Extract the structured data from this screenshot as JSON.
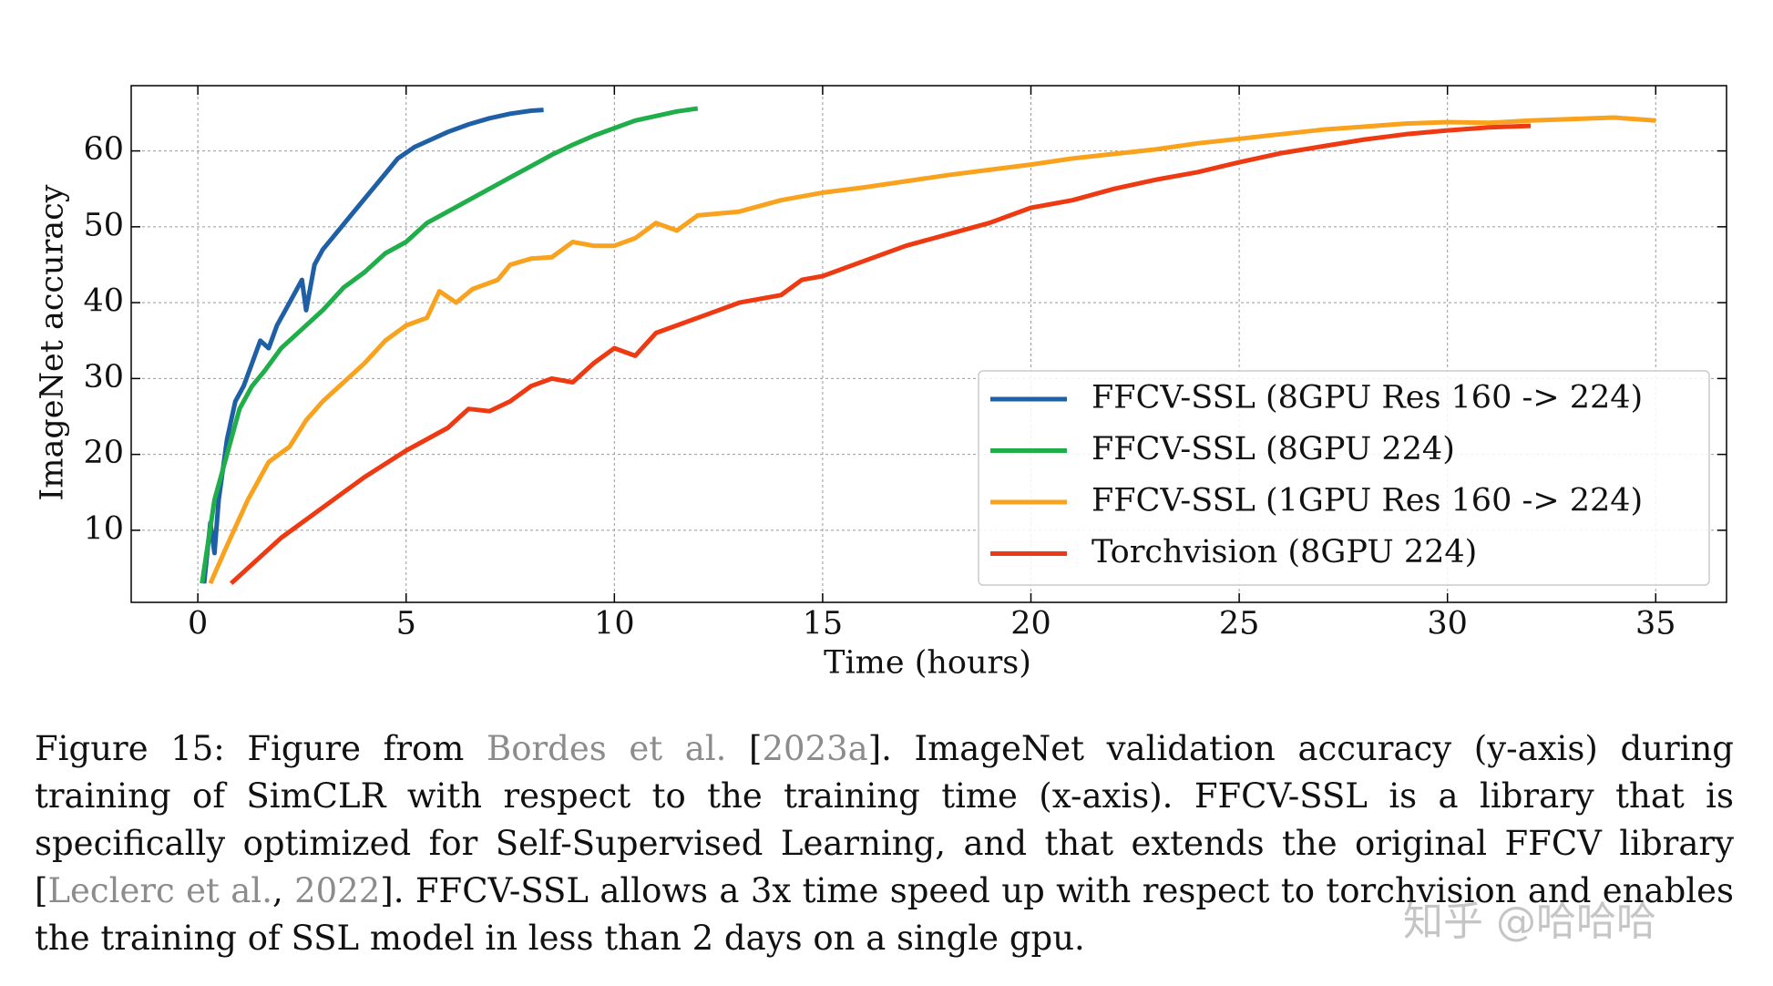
{
  "chart_data": {
    "type": "line",
    "x_label": "Time (hours)",
    "y_label": "ImageNet accuracy",
    "xlim": [
      -1.6,
      36.7
    ],
    "ylim": [
      0.5,
      68.6
    ],
    "xticks": [
      0,
      5,
      10,
      15,
      20,
      25,
      30,
      35
    ],
    "yticks": [
      10,
      20,
      30,
      40,
      50,
      60
    ],
    "grid": true,
    "legend": "lower right",
    "series": [
      {
        "name": "FFCV-SSL (8GPU Res 160 -> 224)",
        "color": "#1f5fa6",
        "x": [
          0.15,
          0.3,
          0.4,
          0.5,
          0.7,
          0.9,
          1.1,
          1.3,
          1.5,
          1.7,
          1.9,
          2.1,
          2.3,
          2.5,
          2.6,
          2.8,
          3.0,
          3.3,
          3.6,
          3.9,
          4.2,
          4.5,
          4.8,
          5.2,
          5.6,
          6.0,
          6.5,
          7.0,
          7.5,
          8.0,
          8.3
        ],
        "values": [
          3,
          11,
          7,
          14,
          22,
          27,
          29,
          32,
          35,
          34,
          37,
          39,
          41,
          43,
          39,
          45,
          47,
          49,
          51,
          53,
          55,
          57,
          59,
          60.5,
          61.5,
          62.5,
          63.5,
          64.3,
          64.9,
          65.3,
          65.4
        ]
      },
      {
        "name": "FFCV-SSL (8GPU 224)",
        "color": "#1fae4a",
        "x": [
          0.1,
          0.4,
          0.7,
          1.0,
          1.3,
          1.6,
          2.0,
          2.5,
          3.0,
          3.5,
          4.0,
          4.5,
          5.0,
          5.5,
          6.0,
          6.5,
          7.0,
          7.5,
          8.0,
          8.5,
          9.0,
          9.5,
          10.0,
          10.5,
          11.0,
          11.5,
          12.0
        ],
        "values": [
          3,
          14,
          20,
          26,
          29,
          31,
          34,
          36.5,
          39,
          42,
          44,
          46.5,
          48,
          50.5,
          52,
          53.5,
          55,
          56.5,
          58,
          59.5,
          60.8,
          62,
          63,
          64,
          64.6,
          65.2,
          65.6
        ]
      },
      {
        "name": "FFCV-SSL (1GPU Res 160 -> 224)",
        "color": "#f9a21e",
        "x": [
          0.3,
          0.7,
          1.2,
          1.7,
          2.2,
          2.6,
          3.0,
          3.5,
          4.0,
          4.5,
          5.0,
          5.5,
          5.8,
          6.2,
          6.6,
          7.2,
          7.5,
          8.0,
          8.5,
          9.0,
          9.5,
          10.0,
          10.5,
          11.0,
          11.5,
          12.0,
          13.0,
          14.0,
          15.0,
          16.0,
          17.0,
          18.0,
          19.0,
          20.0,
          21.0,
          22.0,
          23.0,
          24.0,
          25.0,
          26.0,
          27.0,
          28.0,
          29.0,
          30.0,
          31.0,
          32.0,
          33.0,
          34.0,
          35.0
        ],
        "values": [
          3,
          8,
          14,
          19,
          21,
          24.5,
          27,
          29.5,
          32,
          35,
          37,
          38,
          41.5,
          40,
          41.8,
          43,
          45,
          45.8,
          46,
          48,
          47.5,
          47.5,
          48.5,
          50.5,
          49.5,
          51.5,
          52,
          53.5,
          54.5,
          55.2,
          56,
          56.8,
          57.5,
          58.2,
          59,
          59.6,
          60.2,
          61,
          61.6,
          62.2,
          62.8,
          63.2,
          63.6,
          63.8,
          63.7,
          64,
          64.2,
          64.4,
          64
        ]
      },
      {
        "name": "Torchvision (8GPU 224)",
        "color": "#ee3a12",
        "x": [
          0.8,
          2.0,
          3.0,
          4.0,
          5.0,
          6.0,
          6.5,
          7.0,
          7.5,
          8.0,
          8.5,
          9.0,
          9.5,
          10.0,
          10.5,
          11.0,
          12.0,
          13.0,
          14.0,
          14.5,
          15.0,
          16.0,
          17.0,
          18.0,
          19.0,
          20.0,
          21.0,
          22.0,
          23.0,
          24.0,
          25.0,
          26.0,
          27.0,
          28.0,
          29.0,
          30.0,
          31.0,
          32.0
        ],
        "values": [
          3,
          9,
          13,
          17,
          20.5,
          23.5,
          26,
          25.7,
          27,
          29,
          30,
          29.5,
          32,
          34,
          33,
          36,
          38,
          40,
          41,
          43,
          43.5,
          45.5,
          47.5,
          49,
          50.5,
          52.5,
          53.5,
          55,
          56.2,
          57.2,
          58.5,
          59.7,
          60.6,
          61.5,
          62.2,
          62.7,
          63.1,
          63.3
        ]
      }
    ]
  },
  "caption": {
    "link_color": "#8c8c8c",
    "segments": [
      {
        "text": "Figure 15: Figure from ",
        "link": false
      },
      {
        "text": "Bordes et al.",
        "link": true
      },
      {
        "text": " [",
        "link": false
      },
      {
        "text": "2023a",
        "link": true
      },
      {
        "text": "]. ImageNet validation accuracy (y-axis) during training of SimCLR with respect to the training time (x-axis).  FFCV-SSL is a library that is specifically optimized for Self-Supervised Learning, and that extends the original FFCV library [",
        "link": false
      },
      {
        "text": "Leclerc et al.",
        "link": true
      },
      {
        "text": ", ",
        "link": false
      },
      {
        "text": "2022",
        "link": true
      },
      {
        "text": "]. FFCV-SSL allows a 3x time speed up with respect to torchvision and enables the training of SSL model in less than 2 days on a single gpu.",
        "link": false
      }
    ]
  },
  "watermark": "知乎 @哈哈哈"
}
